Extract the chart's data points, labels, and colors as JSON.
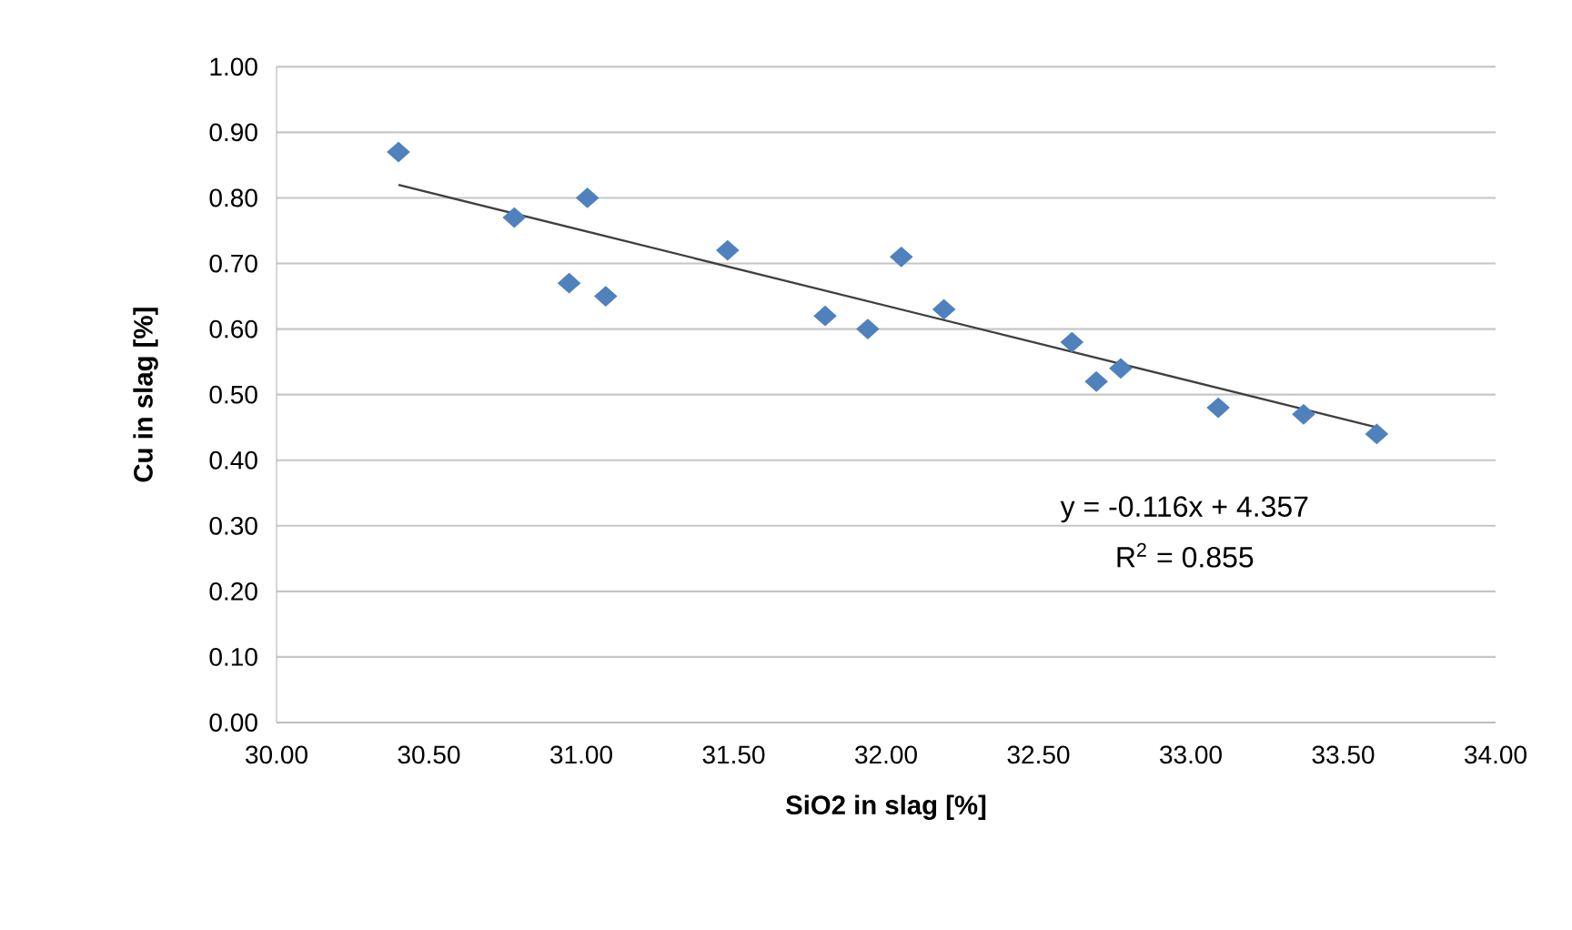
{
  "chart_data": {
    "type": "scatter",
    "xlabel": "SiO2 in slag [%]",
    "ylabel": "Cu in slag [%]",
    "xlim": [
      30,
      34
    ],
    "ylim": [
      0,
      1
    ],
    "xticks": [
      {
        "value": 30,
        "label": "30.00"
      },
      {
        "value": 30.5,
        "label": "30.50"
      },
      {
        "value": 31,
        "label": "31.00"
      },
      {
        "value": 31.5,
        "label": "31.50"
      },
      {
        "value": 32,
        "label": "32.00"
      },
      {
        "value": 32.5,
        "label": "32.50"
      },
      {
        "value": 33,
        "label": "33.00"
      },
      {
        "value": 33.5,
        "label": "33.50"
      },
      {
        "value": 34,
        "label": "34.00"
      }
    ],
    "yticks": [
      {
        "value": 0,
        "label": "0.00"
      },
      {
        "value": 0.1,
        "label": "0.10"
      },
      {
        "value": 0.2,
        "label": "0.20"
      },
      {
        "value": 0.3,
        "label": "0.30"
      },
      {
        "value": 0.4,
        "label": "0.40"
      },
      {
        "value": 0.5,
        "label": "0.50"
      },
      {
        "value": 0.6,
        "label": "0.60"
      },
      {
        "value": 0.7,
        "label": "0.70"
      },
      {
        "value": 0.8,
        "label": "0.80"
      },
      {
        "value": 0.9,
        "label": "0.90"
      },
      {
        "value": 1,
        "label": "1.00"
      }
    ],
    "grid": "y",
    "marker": "diamond",
    "line_style": "solid",
    "annotations": [
      "y = -0.116x + 4.357",
      "R$^{2}$ = 0.855"
    ],
    "series": [
      {
        "color": "#4f81bd",
        "x": [
          30.4,
          30.78,
          31.02,
          30.96,
          31.08,
          31.48,
          31.8,
          31.94,
          32.05,
          32.19,
          32.61,
          32.69,
          32.77,
          33.09,
          33.37,
          33.61
        ],
        "values": [
          0.87,
          0.77,
          0.8,
          0.67,
          0.65,
          0.72,
          0.62,
          0.6,
          0.71,
          0.63,
          0.58,
          0.52,
          0.54,
          0.48,
          0.47,
          0.44
        ]
      },
      {
        "type": "line",
        "color": "#404040",
        "marker": "none",
        "x": [
          30.4,
          33.61
        ],
        "values": [
          0.82,
          0.45
        ]
      }
    ]
  }
}
